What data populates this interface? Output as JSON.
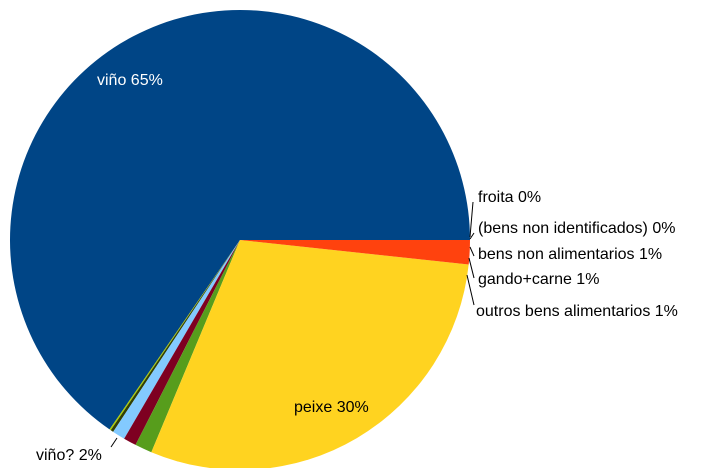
{
  "chart_data": {
    "type": "pie",
    "title": "",
    "slices": [
      {
        "label": "viño",
        "percent_label": "65%",
        "value": 65.4,
        "color": "#004586"
      },
      {
        "label": "froita",
        "percent_label": "0%",
        "value": 0.1,
        "color": "#aecf00"
      },
      {
        "label": "(bens non identificados)",
        "percent_label": "0%",
        "value": 0.2,
        "color": "#314004"
      },
      {
        "label": "bens non alimentarios",
        "percent_label": "1%",
        "value": 0.9,
        "color": "#83caff"
      },
      {
        "label": "gando+carne",
        "percent_label": "1%",
        "value": 0.9,
        "color": "#7e0021"
      },
      {
        "label": "outros bens alimentarios",
        "percent_label": "1%",
        "value": 1.2,
        "color": "#579d1c"
      },
      {
        "label": "peixe",
        "percent_label": "30%",
        "value": 29.6,
        "color": "#ffd320"
      },
      {
        "label": "viño?",
        "percent_label": "2%",
        "value": 1.7,
        "color": "#ff420e"
      }
    ]
  }
}
